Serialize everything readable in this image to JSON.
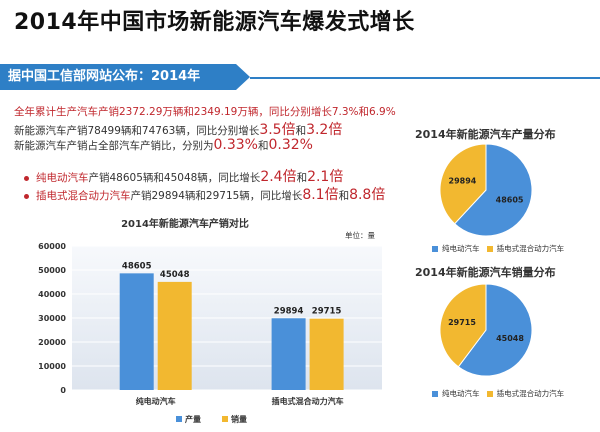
{
  "page_title": "2014年中国市场新能源汽车爆发式增长",
  "banner": "据中国工信部网站公布：2014年",
  "lines": {
    "l1": "全年累计生产汽车产销2372.29万辆和2349.19万辆，同比分别增长7.3%和6.9%",
    "l2_a": "新能源汽车产销78499辆和74763辆，同比分别增长",
    "l2_b": "3.5倍",
    "l2_c": "和",
    "l2_d": "3.2倍",
    "l3_a": "新能源汽车产销占全部汽车产销比，分别为",
    "l3_b": "0.33%",
    "l3_c": "和",
    "l3_d": "0.32%",
    "l4_a": "纯电动汽车",
    "l4_b": "产销48605辆和45048辆，同比增长",
    "l4_c": "2.4倍",
    "l4_d": "和",
    "l4_e": "2.1倍",
    "l5_a": "插电式混合动力汽车",
    "l5_b": "产销29894辆和29715辆，同比增长",
    "l5_c": "8.1倍",
    "l5_d": "和",
    "l5_e": "8.8倍"
  },
  "colors": {
    "pure_ev": "#4a90d9",
    "phev": "#f2b830",
    "accent": "#2e7fc6",
    "red": "#c0272d"
  },
  "chart_data": [
    {
      "type": "bar",
      "title": "2014年新能源汽车产销对比",
      "unit_label": "单位：量",
      "categories": [
        "纯电动汽车",
        "插电式混合动力汽车"
      ],
      "series": [
        {
          "name": "产量",
          "values": [
            48605,
            29894
          ]
        },
        {
          "name": "销量",
          "values": [
            45048,
            29715
          ]
        }
      ],
      "ylim": [
        0,
        60000
      ],
      "yticks": [
        "0",
        "10000",
        "20000",
        "30000",
        "40000",
        "50000",
        "60000"
      ],
      "grid": true,
      "legend": "bottom"
    },
    {
      "type": "pie",
      "title": "2014年新能源汽车产量分布",
      "labels": [
        "纯电动汽车",
        "插电式混合动力汽车"
      ],
      "values": [
        48605,
        29894
      ],
      "value_labels": [
        "48605",
        "29894"
      ],
      "legend": "bottom"
    },
    {
      "type": "pie",
      "title": "2014年新能源汽车销量分布",
      "labels": [
        "纯电动汽车",
        "插电式混合动力汽车"
      ],
      "values": [
        45048,
        29715
      ],
      "value_labels": [
        "45048",
        "29715"
      ],
      "legend": "bottom"
    }
  ]
}
